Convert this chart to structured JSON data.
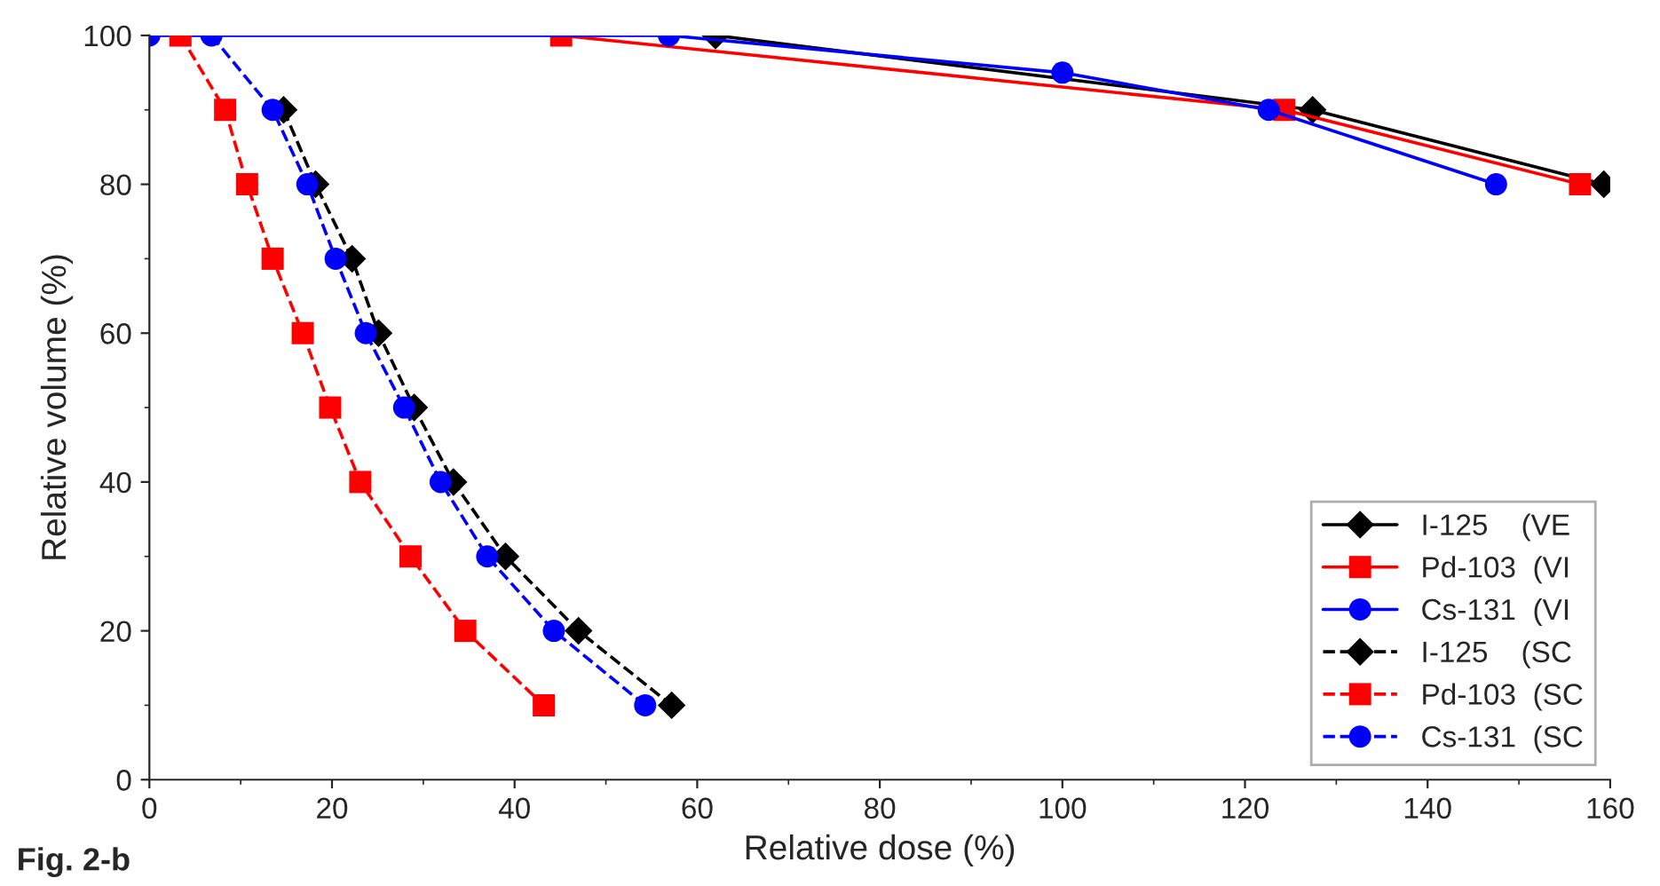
{
  "chart_data": {
    "type": "line",
    "xlabel": "Relative dose (%)",
    "ylabel": "Relative volume (%)",
    "annotations": [
      "Fig. 2-b"
    ],
    "xlim": [
      0,
      160
    ],
    "ylim": [
      0,
      100
    ],
    "xticks": [
      0,
      20,
      40,
      60,
      80,
      100,
      120,
      140,
      160
    ],
    "yticks": [
      0,
      20,
      40,
      60,
      80,
      100
    ],
    "legend": "bottom right",
    "grid": false,
    "series": [
      {
        "name": "I-125    (VE",
        "color": "#000000",
        "marker": "diamond",
        "line_style": "solid",
        "x": [
          62,
          127.4,
          159.3
        ],
        "values": [
          100,
          90,
          80
        ]
      },
      {
        "name": "Pd-103  (VI",
        "color": "#ff0000",
        "marker": "square",
        "line_style": "solid",
        "x": [
          45.1,
          124.3,
          156.7
        ],
        "values": [
          100,
          90,
          80
        ]
      },
      {
        "name": "Cs-131  (VI",
        "color": "#0000ff",
        "marker": "circle",
        "line_style": "solid",
        "x": [
          0,
          56.9,
          100,
          122.6,
          147.5
        ],
        "values": [
          100,
          100,
          95,
          90,
          80
        ]
      },
      {
        "name": "I-125    (SC",
        "color": "#000000",
        "marker": "diamond",
        "line_style": "dashed",
        "x": [
          14.7,
          18.2,
          22.2,
          25.1,
          29.0,
          33.3,
          39.0,
          47.0,
          57.2
        ],
        "values": [
          90,
          80,
          70,
          60,
          50,
          40,
          30,
          20,
          10
        ]
      },
      {
        "name": "Pd-103  (SC",
        "color": "#ff0000",
        "marker": "square",
        "line_style": "dashed",
        "x": [
          3.4,
          8.3,
          10.7,
          13.5,
          16.8,
          19.8,
          23.1,
          28.6,
          34.6,
          43.2
        ],
        "values": [
          100,
          90,
          80,
          70,
          60,
          50,
          40,
          30,
          20,
          10
        ]
      },
      {
        "name": "Cs-131  (SC",
        "color": "#0000ff",
        "marker": "circle",
        "line_style": "dashed",
        "x": [
          6.8,
          13.5,
          17.3,
          20.4,
          23.7,
          27.9,
          31.9,
          37.0,
          44.3,
          54.3
        ],
        "values": [
          100,
          90,
          80,
          70,
          60,
          50,
          40,
          30,
          20,
          10
        ]
      }
    ]
  }
}
